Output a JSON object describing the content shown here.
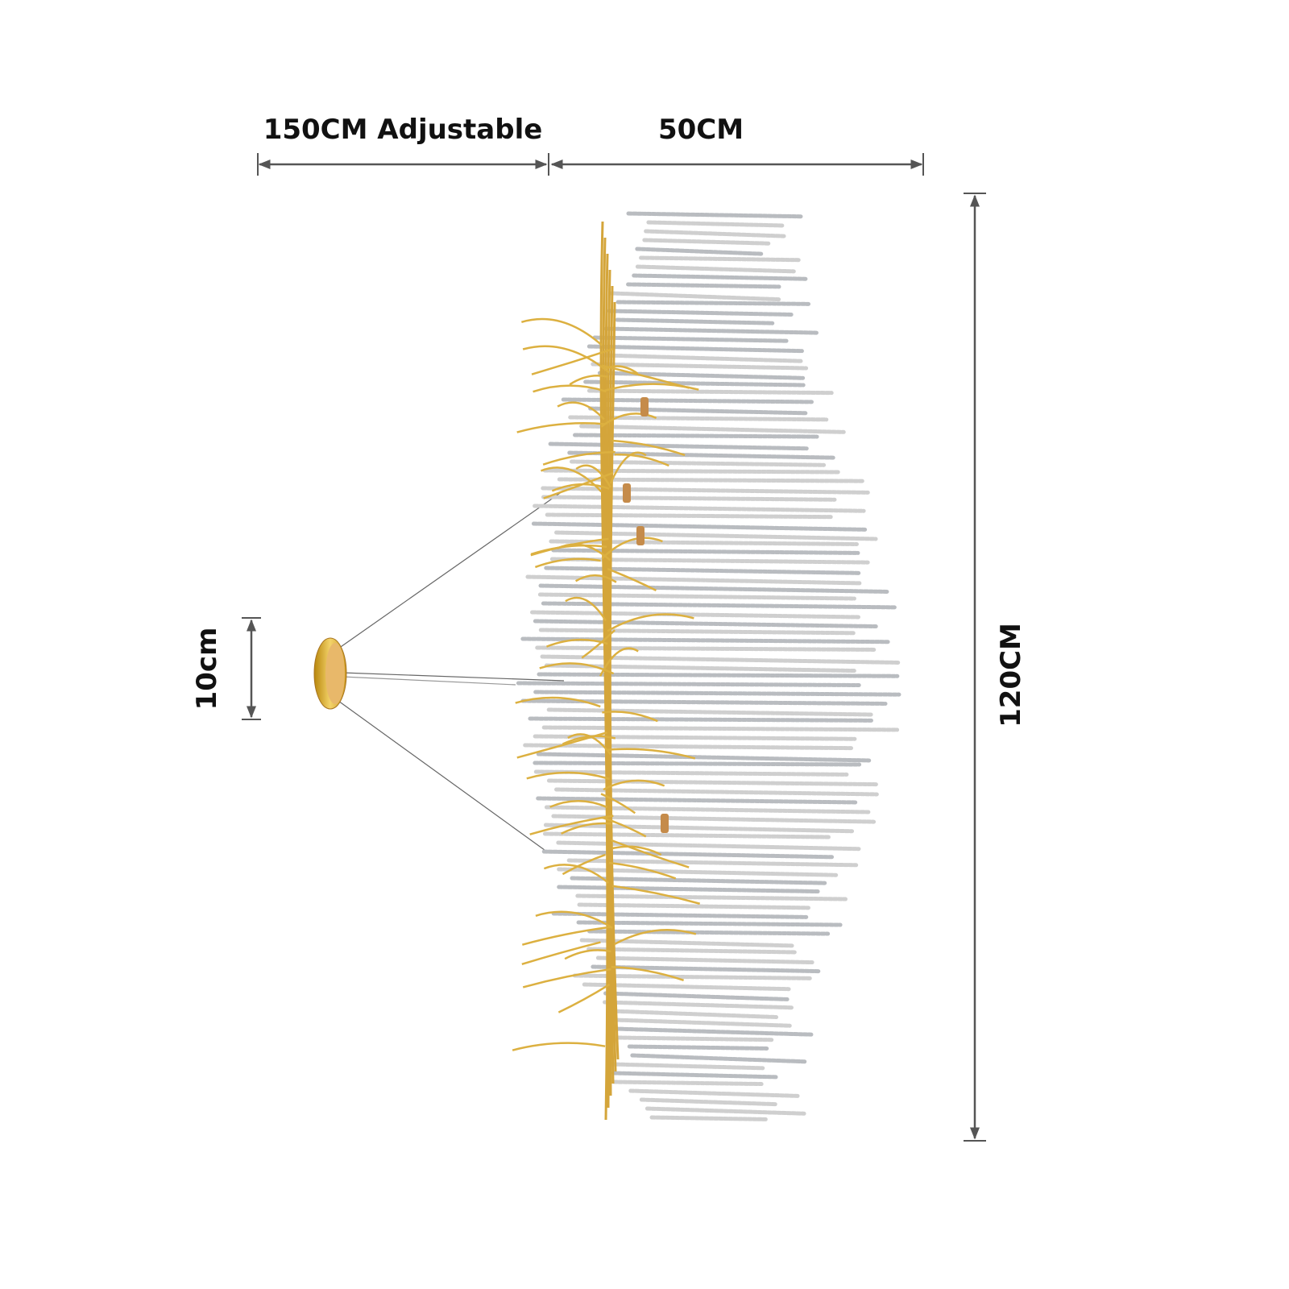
{
  "dimensions": {
    "cord_length": "150CM Adjustable",
    "width": "50CM",
    "canopy_height": "10cm",
    "height": "120CM"
  }
}
